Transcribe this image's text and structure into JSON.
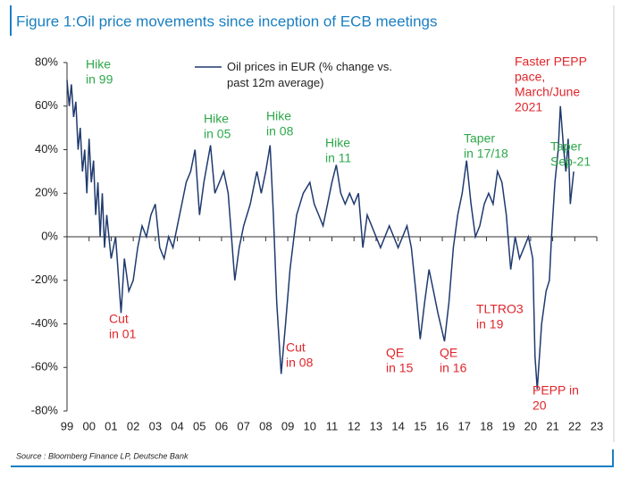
{
  "chart_data": {
    "type": "line",
    "title": "Figure 1:Oil price movements since inception of ECB meetings",
    "source": "Source : Bloomberg Finance LP, Deutsche Bank",
    "x": [
      1999.0,
      1999.1,
      1999.2,
      1999.3,
      1999.4,
      1999.5,
      1999.6,
      1999.7,
      1999.8,
      1999.9,
      2000.0,
      2000.1,
      2000.2,
      2000.3,
      2000.4,
      2000.5,
      2000.6,
      2000.7,
      2000.8,
      2000.9,
      2001.0,
      2001.2,
      2001.45,
      2001.6,
      2001.8,
      2002.0,
      2002.2,
      2002.4,
      2002.6,
      2002.8,
      2003.0,
      2003.2,
      2003.4,
      2003.6,
      2003.8,
      2004.0,
      2004.2,
      2004.4,
      2004.6,
      2004.8,
      2005.0,
      2005.2,
      2005.5,
      2005.7,
      2005.9,
      2006.1,
      2006.3,
      2006.6,
      2006.8,
      2007.0,
      2007.3,
      2007.6,
      2007.8,
      2008.0,
      2008.2,
      2008.35,
      2008.5,
      2008.7,
      2008.9,
      2009.1,
      2009.4,
      2009.7,
      2010.0,
      2010.2,
      2010.4,
      2010.6,
      2010.8,
      2011.0,
      2011.2,
      2011.4,
      2011.6,
      2011.8,
      2012.0,
      2012.2,
      2012.4,
      2012.6,
      2012.8,
      2013.0,
      2013.2,
      2013.4,
      2013.6,
      2013.8,
      2014.0,
      2014.2,
      2014.4,
      2014.6,
      2014.8,
      2015.0,
      2015.2,
      2015.4,
      2015.6,
      2015.8,
      2016.1,
      2016.3,
      2016.5,
      2016.7,
      2016.9,
      2017.1,
      2017.3,
      2017.5,
      2017.7,
      2017.9,
      2018.1,
      2018.3,
      2018.5,
      2018.7,
      2018.9,
      2019.1,
      2019.3,
      2019.5,
      2019.7,
      2019.9,
      2020.1,
      2020.2,
      2020.3,
      2020.5,
      2020.7,
      2020.85,
      2020.95,
      2021.1,
      2021.25,
      2021.35,
      2021.5,
      2021.6,
      2021.7,
      2021.8,
      2021.95
    ],
    "series": [
      {
        "name": "Oil prices in EUR (% change vs. past 12m average)",
        "color": "#1f3a6e",
        "values": [
          72,
          60,
          70,
          55,
          62,
          40,
          50,
          30,
          40,
          20,
          45,
          25,
          35,
          10,
          25,
          0,
          20,
          -5,
          10,
          0,
          -10,
          0,
          -35,
          -10,
          -25,
          -20,
          -5,
          5,
          0,
          10,
          15,
          -5,
          -10,
          0,
          -5,
          5,
          15,
          25,
          30,
          40,
          10,
          25,
          42,
          20,
          25,
          30,
          20,
          -20,
          -5,
          5,
          15,
          30,
          20,
          30,
          42,
          10,
          -30,
          -63,
          -40,
          -15,
          10,
          20,
          25,
          15,
          10,
          5,
          15,
          25,
          33,
          20,
          15,
          20,
          15,
          20,
          -5,
          10,
          5,
          0,
          -5,
          0,
          5,
          0,
          -5,
          0,
          5,
          -5,
          -25,
          -47,
          -30,
          -15,
          -25,
          -35,
          -48,
          -30,
          -5,
          10,
          20,
          35,
          15,
          0,
          5,
          15,
          20,
          15,
          30,
          25,
          10,
          -15,
          0,
          -10,
          -5,
          0,
          -10,
          -55,
          -70,
          -40,
          -25,
          -20,
          0,
          25,
          40,
          60,
          40,
          30,
          45,
          15,
          30
        ]
      }
    ],
    "xlim": [
      1999,
      2023
    ],
    "xticks": [
      {
        "value": 1999,
        "label": "99"
      },
      {
        "value": 2000,
        "label": "00"
      },
      {
        "value": 2001,
        "label": "01"
      },
      {
        "value": 2002,
        "label": "02"
      },
      {
        "value": 2003,
        "label": "03"
      },
      {
        "value": 2004,
        "label": "04"
      },
      {
        "value": 2005,
        "label": "05"
      },
      {
        "value": 2006,
        "label": "06"
      },
      {
        "value": 2007,
        "label": "07"
      },
      {
        "value": 2008,
        "label": "08"
      },
      {
        "value": 2009,
        "label": "09"
      },
      {
        "value": 2010,
        "label": "10"
      },
      {
        "value": 2011,
        "label": "11"
      },
      {
        "value": 2012,
        "label": "12"
      },
      {
        "value": 2013,
        "label": "13"
      },
      {
        "value": 2014,
        "label": "14"
      },
      {
        "value": 2015,
        "label": "15"
      },
      {
        "value": 2016,
        "label": "16"
      },
      {
        "value": 2017,
        "label": "17"
      },
      {
        "value": 2018,
        "label": "18"
      },
      {
        "value": 2019,
        "label": "19"
      },
      {
        "value": 2020,
        "label": "20"
      },
      {
        "value": 2021,
        "label": "21"
      },
      {
        "value": 2022,
        "label": "22"
      },
      {
        "value": 2023,
        "label": "23"
      }
    ],
    "ylim": [
      -80,
      80
    ],
    "yticks": [
      {
        "value": 80,
        "label": "80%"
      },
      {
        "value": 60,
        "label": "60%"
      },
      {
        "value": 40,
        "label": "40%"
      },
      {
        "value": 20,
        "label": "20%"
      },
      {
        "value": 0,
        "label": "0%"
      },
      {
        "value": -20,
        "label": "-20%"
      },
      {
        "value": -40,
        "label": "-40%"
      },
      {
        "value": -60,
        "label": "-60%"
      },
      {
        "value": -80,
        "label": "-80%"
      }
    ],
    "annotations": [
      {
        "lines": [
          "Hike",
          "in 99"
        ],
        "color": "#2ea84a"
      },
      {
        "lines": [
          "Cut",
          "in 01"
        ],
        "color": "#e0262b"
      },
      {
        "lines": [
          "Hike",
          "in 05"
        ],
        "color": "#2ea84a"
      },
      {
        "lines": [
          "Hike",
          "in 08"
        ],
        "color": "#2ea84a"
      },
      {
        "lines": [
          "Cut",
          "in 08"
        ],
        "color": "#e0262b"
      },
      {
        "lines": [
          "Hike",
          "in 11"
        ],
        "color": "#2ea84a"
      },
      {
        "lines": [
          "QE",
          "in 15"
        ],
        "color": "#e0262b"
      },
      {
        "lines": [
          "QE",
          "in 16"
        ],
        "color": "#e0262b"
      },
      {
        "lines": [
          "Taper",
          "in 17/18"
        ],
        "color": "#2ea84a"
      },
      {
        "lines": [
          "TLTRO3",
          "in 19"
        ],
        "color": "#e0262b"
      },
      {
        "lines": [
          "Faster PEPP",
          "pace,",
          "March/June",
          "2021"
        ],
        "color": "#e0262b"
      },
      {
        "lines": [
          "Taper",
          "Sep-21"
        ],
        "color": "#2ea84a"
      },
      {
        "lines": [
          "PEPP   in",
          "20"
        ],
        "color": "#e0262b"
      }
    ]
  }
}
